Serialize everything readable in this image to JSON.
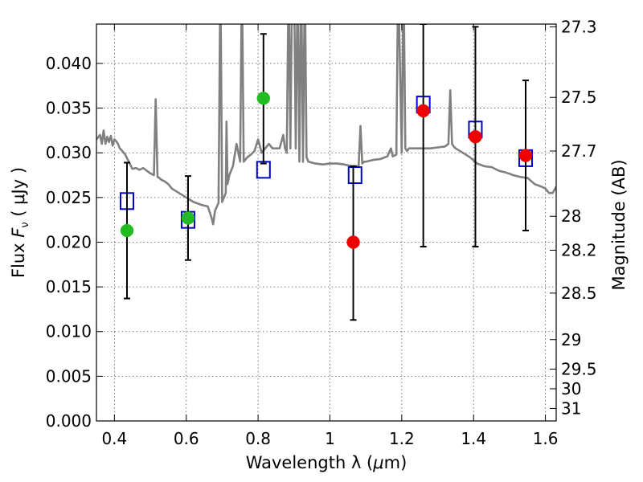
{
  "chart_data": {
    "type": "scatter",
    "xlabel_text": "Wavelength  λ (",
    "xlabel_mu": "μ",
    "xlabel_unit": "m)",
    "ylabel_text": "Flux  ",
    "ylabel_sym": "F",
    "ylabel_sub": "ν",
    "ylabel_unit": "  ( μJy )",
    "y2label": "Magnitude (AB)",
    "xlim": [
      0.35,
      1.63
    ],
    "ylim": [
      0.0,
      0.0444
    ],
    "xticks": [
      0.4,
      0.6,
      0.8,
      1.0,
      1.2,
      1.4,
      1.6
    ],
    "xtick_labels": [
      "0.4",
      "0.6",
      "0.8",
      "1",
      "1.2",
      "1.4",
      "1.6"
    ],
    "yticks": [
      0.0,
      0.005,
      0.01,
      0.015,
      0.02,
      0.025,
      0.03,
      0.035,
      0.04
    ],
    "ytick_labels": [
      "0.000",
      "0.005",
      "0.010",
      "0.015",
      "0.020",
      "0.025",
      "0.030",
      "0.035",
      "0.040"
    ],
    "y2ticks": [
      {
        "label": "27.3",
        "flux": 0.0441
      },
      {
        "label": "27.5",
        "flux": 0.0362
      },
      {
        "label": "27.7",
        "flux": 0.0302
      },
      {
        "label": "28",
        "flux": 0.0229
      },
      {
        "label": "28.2",
        "flux": 0.0191
      },
      {
        "label": "28.5",
        "flux": 0.0143
      },
      {
        "label": "29",
        "flux": 0.0091
      },
      {
        "label": "29.5",
        "flux": 0.0058
      },
      {
        "label": "30",
        "flux": 0.0036
      },
      {
        "label": "31",
        "flux": 0.0014
      }
    ],
    "grid": true,
    "colors": {
      "template": "#808080",
      "model": "#0000cc",
      "green": "#22bb22",
      "red": "#ee0000",
      "errorbar": "#000000"
    },
    "template_spectrum": {
      "x": [
        0.35,
        0.36,
        0.365,
        0.37,
        0.375,
        0.38,
        0.385,
        0.39,
        0.395,
        0.4,
        0.405,
        0.41,
        0.415,
        0.42,
        0.43,
        0.44,
        0.45,
        0.46,
        0.47,
        0.48,
        0.49,
        0.5,
        0.51,
        0.515,
        0.52,
        0.525,
        0.53,
        0.54,
        0.55,
        0.56,
        0.58,
        0.6,
        0.62,
        0.64,
        0.66,
        0.67,
        0.675,
        0.68,
        0.69,
        0.695,
        0.7,
        0.71,
        0.712,
        0.715,
        0.72,
        0.73,
        0.74,
        0.75,
        0.755,
        0.76,
        0.77,
        0.78,
        0.79,
        0.8,
        0.81,
        0.82,
        0.83,
        0.84,
        0.85,
        0.86,
        0.87,
        0.875,
        0.88,
        0.885,
        0.89,
        0.895,
        0.9,
        0.905,
        0.91,
        0.915,
        0.92,
        0.925,
        0.93,
        0.935,
        0.94,
        0.96,
        0.98,
        1.0,
        1.02,
        1.04,
        1.06,
        1.07,
        1.08,
        1.085,
        1.09,
        1.095,
        1.1,
        1.12,
        1.14,
        1.16,
        1.17,
        1.175,
        1.18,
        1.185,
        1.19,
        1.2,
        1.205,
        1.21,
        1.215,
        1.22,
        1.24,
        1.26,
        1.27,
        1.28,
        1.3,
        1.32,
        1.33,
        1.335,
        1.34,
        1.345,
        1.35,
        1.37,
        1.39,
        1.41,
        1.43,
        1.45,
        1.47,
        1.49,
        1.51,
        1.53,
        1.55,
        1.57,
        1.59,
        1.6,
        1.61,
        1.62,
        1.63
      ],
      "y": [
        0.0315,
        0.032,
        0.031,
        0.0325,
        0.031,
        0.0318,
        0.0312,
        0.0319,
        0.0308,
        0.0315,
        0.0313,
        0.031,
        0.0305,
        0.0303,
        0.0298,
        0.029,
        0.0282,
        0.0283,
        0.0281,
        0.0283,
        0.028,
        0.0277,
        0.0275,
        0.036,
        0.0273,
        0.0272,
        0.027,
        0.0268,
        0.0265,
        0.026,
        0.0255,
        0.025,
        0.0245,
        0.0242,
        0.024,
        0.0228,
        0.022,
        0.0235,
        0.0244,
        0.05,
        0.0245,
        0.0255,
        0.0335,
        0.0265,
        0.0275,
        0.0285,
        0.031,
        0.029,
        0.05,
        0.029,
        0.0295,
        0.0298,
        0.0302,
        0.0315,
        0.03,
        0.0305,
        0.031,
        0.0305,
        0.0305,
        0.0305,
        0.032,
        0.0305,
        0.03,
        0.05,
        0.0305,
        0.05,
        0.05,
        0.0305,
        0.05,
        0.029,
        0.05,
        0.029,
        0.05,
        0.0295,
        0.029,
        0.0288,
        0.0287,
        0.0288,
        0.0288,
        0.0287,
        0.0285,
        0.0285,
        0.0285,
        0.033,
        0.0288,
        0.029,
        0.029,
        0.0292,
        0.0293,
        0.0296,
        0.0305,
        0.0296,
        0.0297,
        0.0298,
        0.05,
        0.03,
        0.05,
        0.0305,
        0.0302,
        0.0305,
        0.0305,
        0.0305,
        0.0305,
        0.0305,
        0.0306,
        0.0307,
        0.031,
        0.037,
        0.031,
        0.0307,
        0.0305,
        0.03,
        0.0295,
        0.0288,
        0.0285,
        0.0284,
        0.028,
        0.0278,
        0.0275,
        0.0273,
        0.0272,
        0.0265,
        0.0262,
        0.026,
        0.0255,
        0.0255,
        0.0262
      ]
    },
    "series": [
      {
        "marker": "square",
        "color": "#0000cc",
        "x": [
          0.435,
          0.605,
          0.815,
          1.07,
          1.26,
          1.405,
          1.545
        ],
        "y": [
          0.0246,
          0.0225,
          0.0281,
          0.0275,
          0.0354,
          0.0326,
          0.0294
        ]
      },
      {
        "marker": "circle",
        "color": "#22bb22",
        "x": [
          0.435,
          0.605,
          0.815
        ],
        "y": [
          0.0213,
          0.0227,
          0.0361
        ],
        "yerr_low": [
          0.0137,
          0.018,
          0.0288
        ],
        "yerr_high": [
          0.0289,
          0.0274,
          0.0433
        ]
      },
      {
        "marker": "circle",
        "color": "#ee0000",
        "x": [
          1.065,
          1.26,
          1.405,
          1.545
        ],
        "y": [
          0.02,
          0.0347,
          0.0318,
          0.0297
        ],
        "yerr_low": [
          0.0113,
          0.0195,
          0.0195,
          0.0213
        ],
        "yerr_high": [
          0.0285,
          0.0444,
          0.0441,
          0.0381
        ]
      }
    ]
  }
}
